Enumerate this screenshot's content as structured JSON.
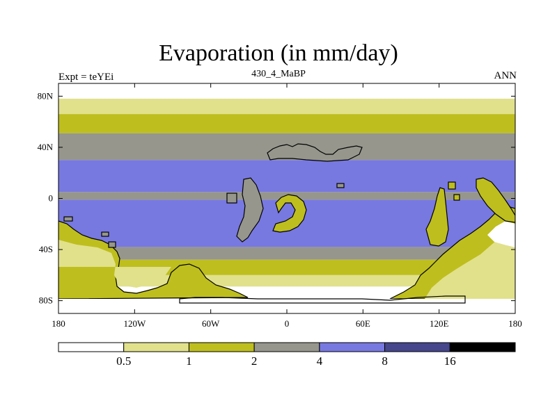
{
  "title": "Evaporation (in mm/day)",
  "left_label": "Expt = teYEi",
  "center_label": "430_4_MaBP",
  "right_label": "ANN",
  "y_ticks": [
    {
      "value": 80,
      "label": "80N"
    },
    {
      "value": 40,
      "label": "40N"
    },
    {
      "value": 0,
      "label": "0"
    },
    {
      "value": -40,
      "label": "40S"
    },
    {
      "value": -80,
      "label": "80S"
    }
  ],
  "x_ticks": [
    {
      "value": -180,
      "label": "180"
    },
    {
      "value": -120,
      "label": "120W"
    },
    {
      "value": -60,
      "label": "60W"
    },
    {
      "value": 0,
      "label": "0"
    },
    {
      "value": 60,
      "label": "60E"
    },
    {
      "value": 120,
      "label": "120E"
    },
    {
      "value": 180,
      "label": "180"
    }
  ],
  "colorbar": {
    "colors": [
      "#ffffff",
      "#e1e18c",
      "#bebe1e",
      "#96968c",
      "#7878e1",
      "#46468c",
      "#000000"
    ],
    "labels": [
      "0.5",
      "1",
      "2",
      "4",
      "8",
      "16"
    ]
  },
  "chart_data": {
    "type": "heatmap",
    "title": "Evaporation (in mm/day)",
    "units": "mm/day",
    "x_range": [
      -180,
      180
    ],
    "y_range": [
      -90,
      90
    ],
    "levels": [
      0.5,
      1,
      2,
      4,
      8,
      16
    ],
    "zonal_bands": [
      {
        "lat_from": 90,
        "lat_to": 78,
        "bin": "<0.5"
      },
      {
        "lat_from": 78,
        "lat_to": 66,
        "bin": "0.5-1"
      },
      {
        "lat_from": 66,
        "lat_to": 51,
        "bin": "1-2"
      },
      {
        "lat_from": 51,
        "lat_to": 30,
        "bin": "2-4"
      },
      {
        "lat_from": 30,
        "lat_to": 5,
        "bin": "4-8"
      },
      {
        "lat_from": 5,
        "lat_to": -1,
        "bin": "2-4"
      },
      {
        "lat_from": -1,
        "lat_to": -38,
        "bin": "4-8"
      },
      {
        "lat_from": -38,
        "lat_to": -48,
        "bin": "2-4"
      },
      {
        "lat_from": -48,
        "lat_to": -60,
        "bin": "1-2"
      },
      {
        "lat_from": -60,
        "lat_to": -69,
        "bin": "0.5-1"
      },
      {
        "lat_from": -69,
        "lat_to": -90,
        "bin": "<0.5"
      }
    ]
  }
}
